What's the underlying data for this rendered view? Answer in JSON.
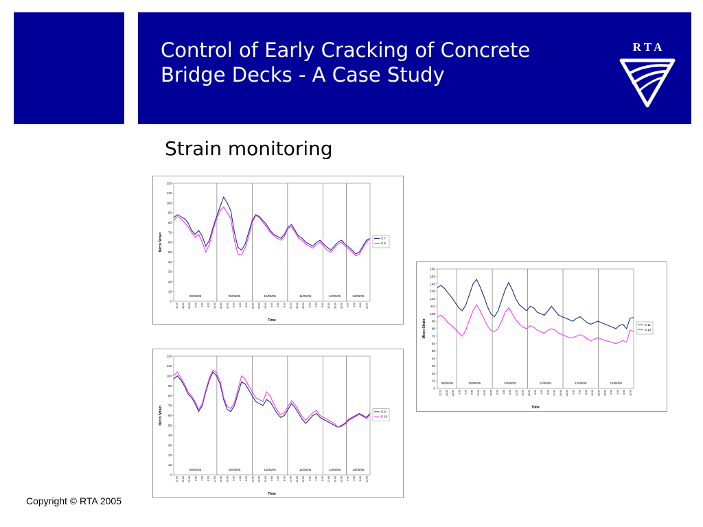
{
  "slide": {
    "title_line1": "Control of Early Cracking of Concrete",
    "title_line2": "Bridge Decks - A Case Study",
    "subtitle": "Strain monitoring",
    "copyright": "Copyright © RTA 2005",
    "logo_text": "R T A",
    "banner_color": "#000099"
  },
  "chart_data": [
    {
      "type": "line",
      "ylabel": "Micro Strain",
      "xlabel": "Time",
      "ylim": [
        0,
        120
      ],
      "ytick_step": 10,
      "day_labels": [
        "08/05/05",
        "09/05/05",
        "10/05/05",
        "11/05/05",
        "12/05/05",
        "13/05/05"
      ],
      "day_boundaries": [
        0.22,
        0.4,
        0.58,
        0.76,
        0.88
      ],
      "x_tick_labels": [
        "12:20",
        "16:00",
        "20:00",
        "0:00",
        "4:00",
        "8:00",
        "12:00",
        "16:00",
        "20:00",
        "0:00",
        "4:00",
        "8:00",
        "12:00",
        "16:00",
        "20:00",
        "0:00",
        "4:00",
        "8:00",
        "12:00",
        "16:00",
        "20:00",
        "0:00",
        "4:00",
        "8:00",
        "12:00",
        "16:00",
        "20:00",
        "0:00",
        "4:00",
        "8:00",
        "12:00"
      ],
      "legend_position": "right",
      "series": [
        {
          "name": "S 7",
          "color": "#1f2a80",
          "values": [
            85,
            88,
            86,
            84,
            80,
            72,
            68,
            72,
            66,
            56,
            62,
            75,
            86,
            96,
            106,
            100,
            92,
            70,
            55,
            52,
            58,
            70,
            82,
            88,
            86,
            82,
            78,
            72,
            68,
            66,
            64,
            68,
            75,
            78,
            72,
            66,
            64,
            60,
            58,
            56,
            60,
            62,
            58,
            55,
            52,
            56,
            60,
            62,
            58,
            55,
            52,
            48,
            50,
            56,
            62,
            64
          ]
        },
        {
          "name": "S 8",
          "color": "#ff33ff",
          "values": [
            82,
            86,
            84,
            80,
            76,
            70,
            65,
            68,
            60,
            50,
            58,
            72,
            84,
            92,
            96,
            90,
            84,
            62,
            48,
            47,
            54,
            66,
            80,
            87,
            85,
            80,
            76,
            70,
            67,
            64,
            62,
            66,
            74,
            76,
            70,
            64,
            62,
            58,
            56,
            54,
            58,
            60,
            56,
            52,
            50,
            54,
            58,
            60,
            56,
            53,
            50,
            46,
            48,
            54,
            60,
            64
          ]
        }
      ]
    },
    {
      "type": "line",
      "ylabel": "Micro Strain",
      "xlabel": "Time",
      "ylim": [
        0,
        120
      ],
      "ytick_step": 10,
      "day_labels": [
        "08/05/05",
        "09/05/05",
        "10/05/05",
        "11/05/05",
        "12/05/05",
        "13/05/05"
      ],
      "day_boundaries": [
        0.22,
        0.4,
        0.58,
        0.76,
        0.88
      ],
      "x_tick_labels": [
        "12:20",
        "16:00",
        "20:00",
        "0:00",
        "4:00",
        "8:00",
        "12:00",
        "16:00",
        "20:00",
        "0:00",
        "4:00",
        "8:00",
        "12:00",
        "16:00",
        "20:00",
        "0:00",
        "4:00",
        "8:00",
        "12:00",
        "16:00",
        "20:00",
        "0:00",
        "4:00",
        "8:00",
        "12:00",
        "16:00",
        "20:00",
        "0:00",
        "4:00",
        "8:00",
        "12:00"
      ],
      "legend_position": "right",
      "series": [
        {
          "name": "S 9",
          "color": "#1f2a80",
          "values": [
            97,
            100,
            96,
            90,
            82,
            78,
            72,
            64,
            70,
            84,
            96,
            104,
            100,
            92,
            76,
            66,
            64,
            70,
            82,
            94,
            92,
            86,
            80,
            74,
            72,
            70,
            76,
            74,
            68,
            62,
            58,
            60,
            66,
            72,
            68,
            62,
            56,
            52,
            56,
            60,
            62,
            58,
            56,
            54,
            52,
            50,
            48,
            50,
            52,
            56,
            58,
            60,
            62,
            60,
            58,
            62
          ]
        },
        {
          "name": "S 10",
          "color": "#ff33ff",
          "values": [
            100,
            104,
            98,
            92,
            84,
            80,
            74,
            66,
            72,
            86,
            98,
            106,
            103,
            95,
            78,
            69,
            67,
            73,
            86,
            100,
            97,
            90,
            84,
            78,
            76,
            74,
            84,
            80,
            72,
            65,
            61,
            63,
            69,
            75,
            71,
            65,
            59,
            55,
            59,
            63,
            65,
            60,
            58,
            56,
            54,
            52,
            48,
            49,
            51,
            55,
            57,
            59,
            61,
            59,
            57,
            61
          ]
        }
      ]
    },
    {
      "type": "line",
      "ylabel": "Micro Strain",
      "xlabel": "Time",
      "ylim": [
        0,
        160
      ],
      "ytick_step": 10,
      "day_labels": [
        "08/05/05",
        "09/05/05",
        "10/05/05",
        "11/05/05",
        "12/05/05",
        "13/05/05"
      ],
      "day_boundaries": [
        0.1,
        0.28,
        0.46,
        0.64,
        0.82
      ],
      "x_tick_labels": [
        "12:20",
        "16:00",
        "20:00",
        "0:00",
        "4:00",
        "8:00",
        "12:00",
        "16:00",
        "20:00",
        "0:00",
        "4:00",
        "8:00",
        "12:00",
        "16:00",
        "20:00",
        "0:00",
        "4:00",
        "8:00",
        "12:00",
        "16:00",
        "20:00",
        "0:00",
        "4:00",
        "8:00",
        "12:00",
        "16:00",
        "20:00",
        "0:00",
        "4:00",
        "8:00",
        "12:00"
      ],
      "legend_position": "right",
      "series": [
        {
          "name": "S 11",
          "color": "#1f2a80",
          "values": [
            135,
            138,
            134,
            128,
            122,
            115,
            108,
            104,
            112,
            126,
            140,
            146,
            136,
            124,
            110,
            100,
            96,
            104,
            118,
            132,
            142,
            132,
            120,
            112,
            108,
            104,
            110,
            108,
            102,
            100,
            98,
            104,
            110,
            104,
            98,
            96,
            94,
            92,
            90,
            94,
            96,
            92,
            88,
            86,
            88,
            90,
            88,
            86,
            84,
            82,
            80,
            84,
            86,
            80,
            94,
            95
          ]
        },
        {
          "name": "S 12",
          "color": "#ff33ff",
          "values": [
            96,
            98,
            94,
            88,
            84,
            80,
            74,
            70,
            78,
            92,
            104,
            112,
            104,
            94,
            84,
            78,
            76,
            80,
            90,
            102,
            108,
            100,
            92,
            86,
            82,
            80,
            84,
            82,
            78,
            76,
            74,
            78,
            80,
            78,
            74,
            72,
            70,
            68,
            68,
            70,
            72,
            70,
            66,
            64,
            66,
            68,
            66,
            64,
            63,
            62,
            60,
            62,
            64,
            62,
            78,
            76
          ]
        }
      ]
    }
  ]
}
